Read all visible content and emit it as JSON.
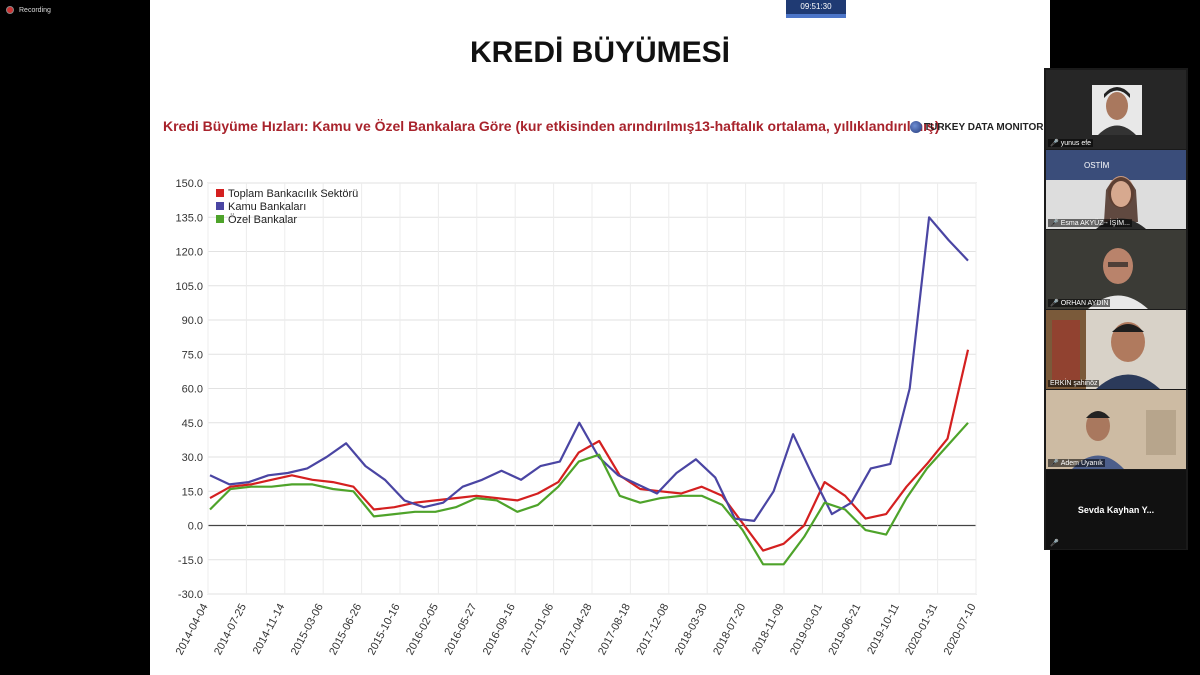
{
  "recording_label": "Recording",
  "timer": "09:51:30",
  "slide": {
    "title": "KREDİ BÜYÜMESİ",
    "subtitle": "Kredi Büyüme Hızları: Kamu ve Özel Bankalara Göre (kur etkisinden arındırılmış13-haftalık ortalama, yıllıklandırılmış)",
    "brand": "TURKEY DATA MONITOR"
  },
  "chart_data": {
    "type": "line",
    "ylim": [
      -30,
      150
    ],
    "yticks": [
      "150.0",
      "135.0",
      "120.0",
      "105.0",
      "90.0",
      "75.0",
      "60.0",
      "45.0",
      "30.0",
      "15.0",
      "0.0",
      "-15.0",
      "-30.0"
    ],
    "x_ticks": [
      "2014-04-04",
      "2014-07-25",
      "2014-11-14",
      "2015-03-06",
      "2015-06-26",
      "2015-10-16",
      "2016-02-05",
      "2016-05-27",
      "2016-09-16",
      "2017-01-06",
      "2017-04-28",
      "2017-08-18",
      "2017-12-08",
      "2018-03-30",
      "2018-07-20",
      "2018-11-09",
      "2019-03-01",
      "2019-06-21",
      "2019-10-11",
      "2020-01-31",
      "2020-07-10"
    ],
    "legend_position": "top-left",
    "grid": true,
    "series": [
      {
        "name": "Toplam Bankacılık Sektörü",
        "color": "#d42020",
        "values": [
          12,
          17,
          18,
          20,
          22,
          20,
          19,
          17,
          7,
          8,
          10,
          11,
          12,
          13,
          12,
          11,
          14,
          19,
          32,
          37,
          22,
          16,
          15,
          14,
          17,
          13,
          1,
          -11,
          -8,
          0,
          19,
          13,
          3,
          5,
          17,
          27,
          38,
          77
        ]
      },
      {
        "name": "Kamu Bankaları",
        "color": "#4a45a3",
        "values": [
          22,
          18,
          19,
          22,
          23,
          25,
          30,
          36,
          26,
          20,
          11,
          8,
          10,
          17,
          20,
          24,
          20,
          26,
          28,
          45,
          30,
          22,
          18,
          14,
          23,
          29,
          21,
          3,
          2,
          15,
          40,
          22,
          5,
          10,
          25,
          27,
          60,
          135,
          125,
          116
        ]
      },
      {
        "name": "Özel Bankalar",
        "color": "#4ea32a",
        "values": [
          7,
          16,
          17,
          17,
          18,
          18,
          16,
          15,
          4,
          5,
          6,
          6,
          8,
          12,
          11,
          6,
          9,
          17,
          28,
          31,
          13,
          10,
          12,
          13,
          13,
          9,
          -2,
          -17,
          -17,
          -5,
          10,
          7,
          -2,
          -4,
          12,
          25,
          35,
          45
        ]
      }
    ]
  },
  "participants": [
    {
      "name": "yunus efe"
    },
    {
      "name": "Esma AKYÜZ - İŞİM..."
    },
    {
      "name": "ORHAN AYDIN"
    },
    {
      "name": "ERKİN şahinöz"
    },
    {
      "name": "Adem Uyanık"
    },
    {
      "name": "Sevda Kayhan Y..."
    }
  ]
}
